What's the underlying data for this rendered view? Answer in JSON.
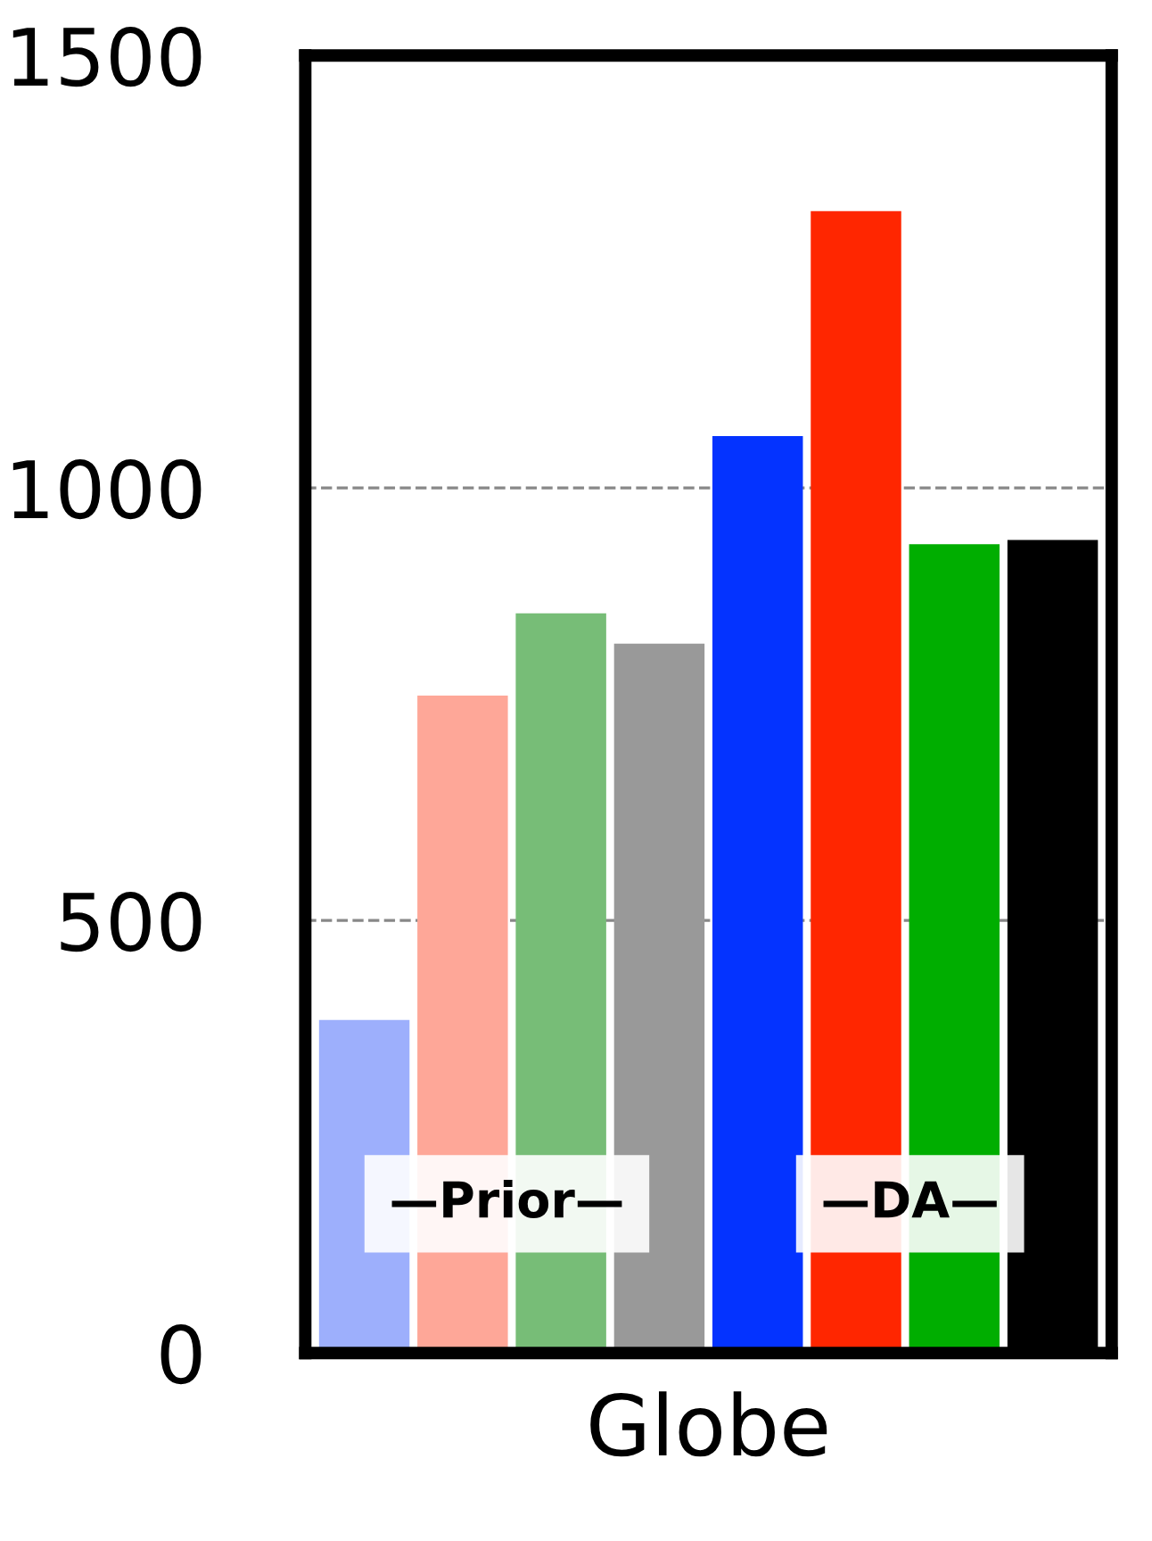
{
  "chart_data": {
    "type": "bar",
    "categories": [
      null,
      null,
      null,
      null,
      null,
      null,
      null,
      null
    ],
    "xlabel": "Globe",
    "values": [
      385,
      760,
      855,
      820,
      1060,
      1320,
      935,
      940
    ],
    "colors": [
      "#9daffc",
      "#fea798",
      "#77bd77",
      "#999999",
      "#0433ff",
      "#ff2600",
      "#00ae00",
      "#000000"
    ],
    "ylim": [
      0,
      1500
    ],
    "yticks": [
      0,
      500,
      1000,
      1500
    ],
    "grid": "y",
    "annotations": [
      "—Prior—",
      "—DA—"
    ]
  }
}
